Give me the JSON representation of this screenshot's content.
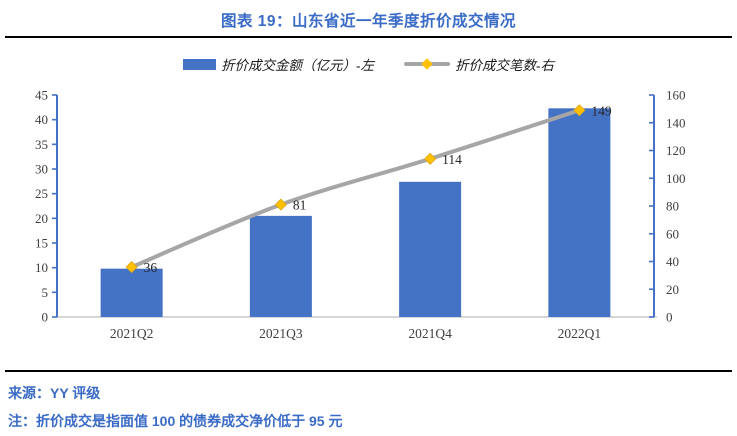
{
  "header": {
    "title": "图表 19：山东省近一年季度折价成交情况"
  },
  "legend": {
    "items": [
      {
        "label": "折价成交金额（亿元）-左",
        "marker": "bar-swatch",
        "color": "#4472C4"
      },
      {
        "label": "折价成交笔数-右",
        "marker": "line-diamond-swatch",
        "line_color": "#A6A6A6",
        "marker_color": "#FFC000"
      }
    ]
  },
  "chart_data": {
    "type": "combo",
    "categories": [
      "2021Q2",
      "2021Q3",
      "2021Q4",
      "2022Q1"
    ],
    "series": [
      {
        "name": "折价成交金额（亿元）-左",
        "type": "bar",
        "axis": "left",
        "color": "#4472C4",
        "values": [
          9.8,
          20.5,
          27.4,
          42.3
        ]
      },
      {
        "name": "折价成交笔数-右",
        "type": "line",
        "axis": "right",
        "color": "#A6A6A6",
        "smooth": true,
        "marker": "diamond",
        "marker_color": "#FFC000",
        "values": [
          36,
          81,
          114,
          149
        ],
        "data_labels": [
          "36",
          "81",
          "114",
          "149"
        ]
      }
    ],
    "left_axis": {
      "min": 0,
      "max": 45,
      "step": 5,
      "ticks": [
        0,
        5,
        10,
        15,
        20,
        25,
        30,
        35,
        40,
        45
      ],
      "line_color": "#4472C4",
      "label_color": "#3f3f3f"
    },
    "right_axis": {
      "min": 0,
      "max": 160,
      "step": 20,
      "ticks": [
        0,
        20,
        40,
        60,
        80,
        100,
        120,
        140,
        160
      ],
      "line_color": "#4472C4",
      "label_color": "#3f3f3f"
    },
    "x_axis": {
      "line_color": "#c9c9c9",
      "label_color": "#3f3f3f"
    },
    "grid": false,
    "legend_position": "top",
    "data_label_color": "#262626"
  },
  "footer": {
    "source": "来源：YY 评级",
    "note": "注：折价成交是指面值 100 的债券成交净价低于 95 元"
  },
  "colors": {
    "accent_blue": "#3a6bc6",
    "bar_blue": "#4472C4",
    "line_gray": "#A6A6A6",
    "marker_gold": "#FFC000",
    "rule_black": "#000000"
  }
}
